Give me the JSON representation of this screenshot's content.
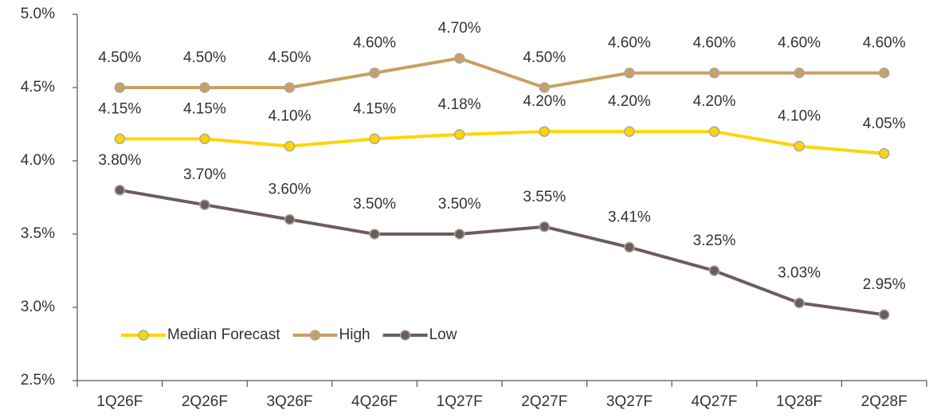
{
  "chart_data": {
    "type": "line",
    "categories": [
      "1Q26F",
      "2Q26F",
      "3Q26F",
      "4Q26F",
      "1Q27F",
      "2Q27F",
      "3Q27F",
      "4Q27F",
      "1Q28F",
      "2Q28F"
    ],
    "series": [
      {
        "name": "Median Forecast",
        "color": "#ffd500",
        "values": [
          4.15,
          4.15,
          4.1,
          4.15,
          4.18,
          4.2,
          4.2,
          4.2,
          4.1,
          4.05
        ],
        "value_labels": [
          "4.15%",
          "4.15%",
          "4.10%",
          "4.15%",
          "4.18%",
          "4.20%",
          "4.20%",
          "4.20%",
          "4.10%",
          "4.05%"
        ]
      },
      {
        "name": "High",
        "color": "#c8a062",
        "values": [
          4.5,
          4.5,
          4.5,
          4.6,
          4.7,
          4.5,
          4.6,
          4.6,
          4.6,
          4.6
        ],
        "value_labels": [
          "4.50%",
          "4.50%",
          "4.50%",
          "4.60%",
          "4.70%",
          "4.50%",
          "4.60%",
          "4.60%",
          "4.60%",
          "4.60%"
        ]
      },
      {
        "name": "Low",
        "color": "#6c5d59",
        "values": [
          3.8,
          3.7,
          3.6,
          3.5,
          3.5,
          3.55,
          3.41,
          3.25,
          3.03,
          2.95
        ],
        "value_labels": [
          "3.80%",
          "3.70%",
          "3.60%",
          "3.50%",
          "3.50%",
          "3.55%",
          "3.41%",
          "3.25%",
          "3.03%",
          "2.95%"
        ]
      }
    ],
    "ylim": [
      2.5,
      5.0
    ],
    "yticks": [
      {
        "value": 2.5,
        "label": "2.5%"
      },
      {
        "value": 3.0,
        "label": "3.0%"
      },
      {
        "value": 3.5,
        "label": "3.5%"
      },
      {
        "value": 4.0,
        "label": "4.0%"
      },
      {
        "value": 4.5,
        "label": "4.5%"
      },
      {
        "value": 5.0,
        "label": "5.0%"
      }
    ],
    "grid": false,
    "legend": "lower left"
  }
}
